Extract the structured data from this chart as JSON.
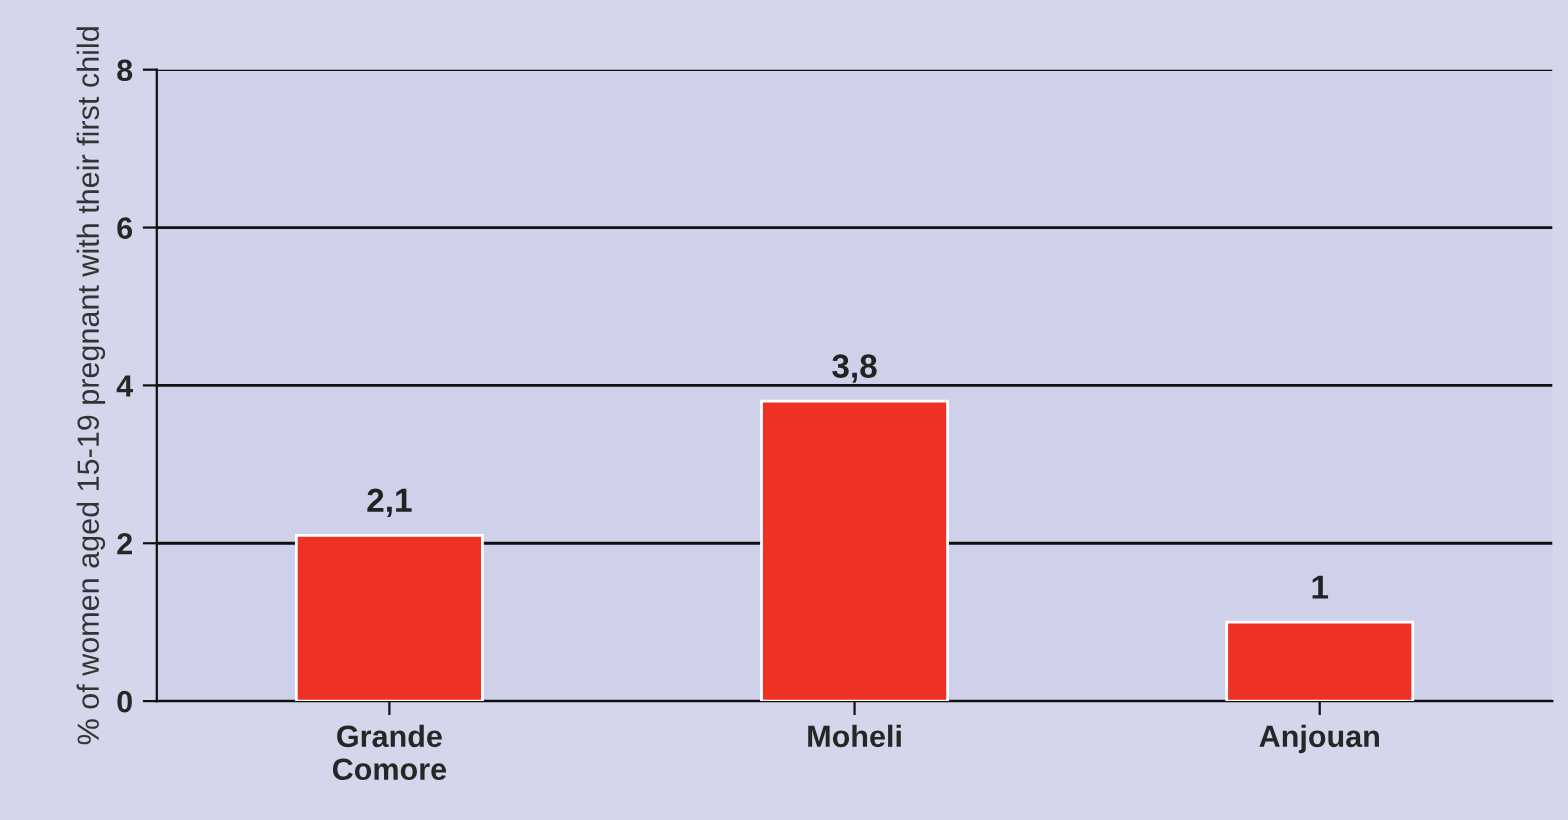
{
  "chart_data": {
    "type": "bar",
    "ylabel": "% of women aged 15-19 pregnant with their first child",
    "categories": [
      "Grande\nComore",
      "Moheli",
      "Anjouan"
    ],
    "values": [
      2.1,
      3.8,
      1
    ],
    "color": "#ee3124",
    "value_labels": [
      "2,1",
      "3,8",
      "1"
    ],
    "ylim": [
      0,
      8
    ],
    "yticks": [
      0,
      2,
      4,
      6,
      8
    ],
    "grid": "y",
    "legend": false
  }
}
